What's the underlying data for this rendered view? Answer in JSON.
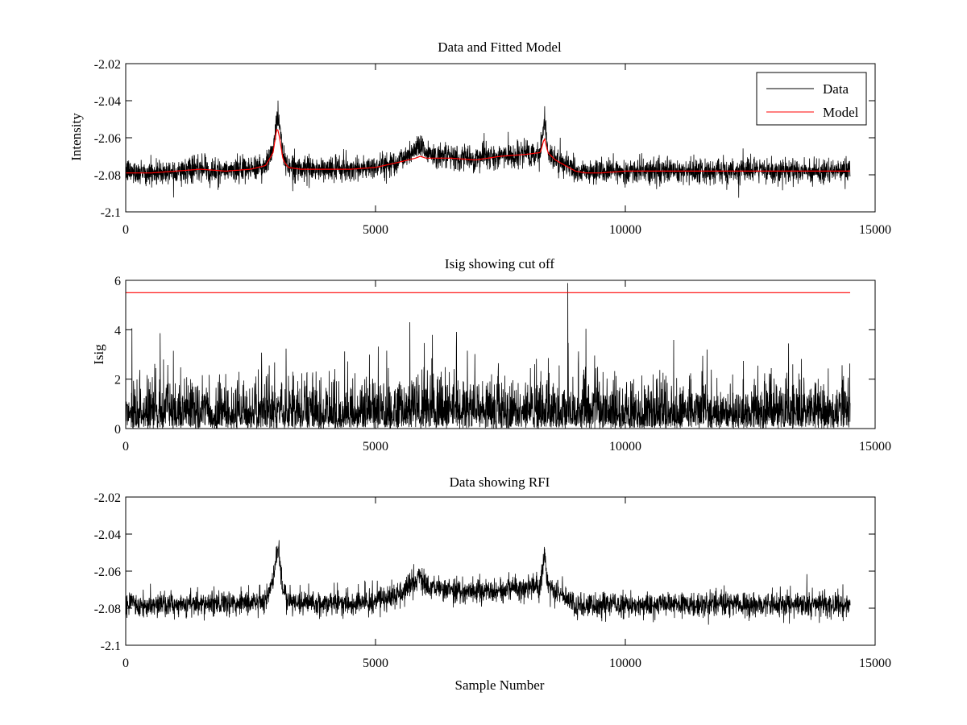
{
  "figure": {
    "background": "#ffffff"
  },
  "chart_data": [
    {
      "type": "line",
      "title": "Data and Fitted Model",
      "xlabel": "",
      "ylabel": "Intensity",
      "xlim": [
        0,
        15000
      ],
      "ylim": [
        -2.1,
        -2.02
      ],
      "xticks": [
        0,
        5000,
        10000,
        15000
      ],
      "yticks": [
        -2.1,
        -2.08,
        -2.06,
        -2.04,
        -2.02
      ],
      "xtick_labels": [
        "0",
        "5000",
        "10000",
        "15000"
      ],
      "ytick_labels": [
        "-2.1",
        "-2.08",
        "-2.06",
        "-2.04",
        "-2.02"
      ],
      "grid": false,
      "legend": {
        "placement": "top-right",
        "entries": [
          "Data",
          "Model"
        ]
      },
      "series": [
        {
          "name": "Data",
          "color": "#000000",
          "style": "noisy",
          "noise": 0.0045,
          "x": [
            0,
            500,
            1000,
            1500,
            2000,
            2500,
            2800,
            2950,
            3030,
            3080,
            3150,
            3250,
            3500,
            4000,
            4500,
            5000,
            5500,
            5800,
            5900,
            6000,
            6500,
            7000,
            7500,
            8000,
            8300,
            8380,
            8450,
            8600,
            9000,
            9200,
            9500,
            10000,
            11000,
            12000,
            13000,
            14000,
            14500
          ],
          "y": [
            -2.078,
            -2.079,
            -2.078,
            -2.077,
            -2.078,
            -2.077,
            -2.075,
            -2.066,
            -2.048,
            -2.052,
            -2.07,
            -2.075,
            -2.077,
            -2.077,
            -2.077,
            -2.076,
            -2.072,
            -2.066,
            -2.062,
            -2.068,
            -2.071,
            -2.071,
            -2.07,
            -2.069,
            -2.068,
            -2.05,
            -2.067,
            -2.071,
            -2.078,
            -2.079,
            -2.078,
            -2.078,
            -2.078,
            -2.078,
            -2.078,
            -2.078,
            -2.078
          ]
        },
        {
          "name": "Model",
          "color": "#ff0000",
          "style": "smooth",
          "x": [
            0,
            500,
            1000,
            1500,
            2000,
            2500,
            2800,
            2950,
            3030,
            3080,
            3150,
            3250,
            3500,
            4000,
            4500,
            5000,
            5500,
            5800,
            5900,
            6000,
            6500,
            7000,
            7500,
            8000,
            8300,
            8380,
            8450,
            8600,
            9000,
            9200,
            9500,
            10000,
            11000,
            12000,
            13000,
            14000,
            14500
          ],
          "y": [
            -2.079,
            -2.079,
            -2.078,
            -2.077,
            -2.078,
            -2.077,
            -2.075,
            -2.068,
            -2.054,
            -2.06,
            -2.072,
            -2.076,
            -2.077,
            -2.077,
            -2.077,
            -2.076,
            -2.073,
            -2.071,
            -2.07,
            -2.071,
            -2.071,
            -2.072,
            -2.07,
            -2.069,
            -2.068,
            -2.06,
            -2.068,
            -2.072,
            -2.078,
            -2.079,
            -2.079,
            -2.078,
            -2.078,
            -2.078,
            -2.078,
            -2.078,
            -2.078
          ]
        }
      ]
    },
    {
      "type": "line",
      "title": "Isig showing cut off",
      "xlabel": "",
      "ylabel": "Isig",
      "xlim": [
        0,
        15000
      ],
      "ylim": [
        0,
        6
      ],
      "xticks": [
        0,
        5000,
        10000,
        15000
      ],
      "yticks": [
        0,
        2,
        4,
        6
      ],
      "xtick_labels": [
        "0",
        "5000",
        "10000",
        "15000"
      ],
      "ytick_labels": [
        "0",
        "2",
        "4",
        "6"
      ],
      "grid": false,
      "series": [
        {
          "color": "#000000",
          "style": "abs-noise",
          "noise": 0.8,
          "x": [
            0,
            2000,
            4000,
            5700,
            5850,
            5880,
            5950,
            6100,
            8000,
            10000,
            12000,
            14000,
            14500
          ],
          "y": [
            0.8,
            0.8,
            0.8,
            0.8,
            1.5,
            0.2,
            1.2,
            0.9,
            0.8,
            0.8,
            0.8,
            0.8,
            0.8
          ]
        },
        {
          "color": "#ff0000",
          "style": "smooth",
          "x": [
            0,
            14500
          ],
          "y": [
            5.5,
            5.5
          ]
        }
      ]
    },
    {
      "type": "line",
      "title": "Data showing RFI",
      "xlabel": "Sample Number",
      "ylabel": "",
      "xlim": [
        0,
        15000
      ],
      "ylim": [
        -2.1,
        -2.02
      ],
      "xticks": [
        0,
        5000,
        10000,
        15000
      ],
      "yticks": [
        -2.1,
        -2.08,
        -2.06,
        -2.04,
        -2.02
      ],
      "xtick_labels": [
        "0",
        "5000",
        "10000",
        "15000"
      ],
      "ytick_labels": [
        "-2.1",
        "-2.08",
        "-2.06",
        "-2.04",
        "-2.02"
      ],
      "grid": false,
      "series": [
        {
          "color": "#000000",
          "style": "noisy",
          "noise": 0.0045,
          "x": [
            0,
            500,
            1000,
            1500,
            2000,
            2500,
            2800,
            2950,
            3030,
            3080,
            3150,
            3250,
            3500,
            4000,
            4500,
            5000,
            5500,
            5800,
            5900,
            6000,
            6500,
            7000,
            7500,
            8000,
            8300,
            8380,
            8450,
            8600,
            9000,
            9200,
            9500,
            10000,
            11000,
            12000,
            13000,
            14000,
            14500
          ],
          "y": [
            -2.078,
            -2.079,
            -2.078,
            -2.077,
            -2.078,
            -2.077,
            -2.075,
            -2.066,
            -2.048,
            -2.052,
            -2.07,
            -2.075,
            -2.077,
            -2.077,
            -2.077,
            -2.076,
            -2.072,
            -2.066,
            -2.062,
            -2.068,
            -2.071,
            -2.071,
            -2.07,
            -2.069,
            -2.068,
            -2.05,
            -2.067,
            -2.071,
            -2.078,
            -2.079,
            -2.078,
            -2.078,
            -2.078,
            -2.078,
            -2.078,
            -2.078,
            -2.078
          ]
        }
      ]
    }
  ]
}
